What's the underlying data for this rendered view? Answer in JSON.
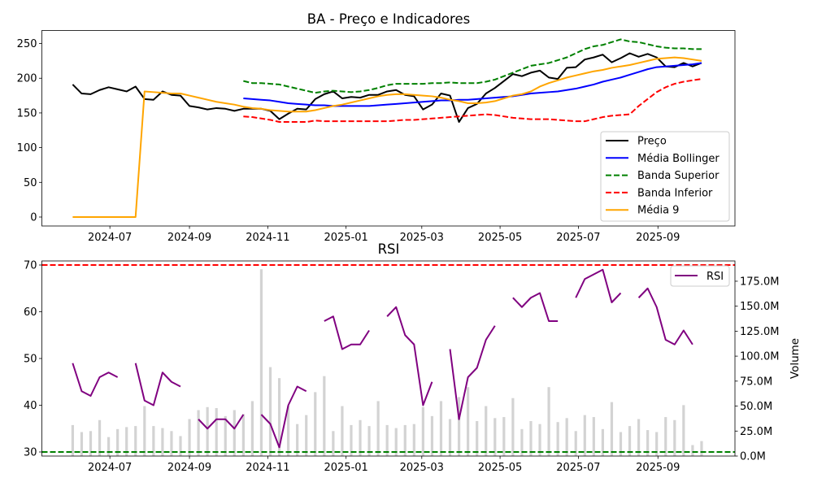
{
  "chart_data": [
    {
      "type": "line",
      "title": "BA - Preço e Indicadores",
      "xlim": [
        "2024-05-09",
        "2025-10-31"
      ],
      "ylim": [
        -12.9,
        268.8
      ],
      "yticks": [
        0,
        50,
        100,
        150,
        200,
        250
      ],
      "grid": false,
      "legend_placement": "lower-right",
      "x": [
        "2024-06-02",
        "2024-06-09",
        "2024-06-16",
        "2024-06-23",
        "2024-06-30",
        "2024-07-07",
        "2024-07-14",
        "2024-07-21",
        "2024-07-28",
        "2024-08-04",
        "2024-08-11",
        "2024-08-18",
        "2024-08-25",
        "2024-09-01",
        "2024-09-08",
        "2024-09-15",
        "2024-09-22",
        "2024-09-29",
        "2024-10-06",
        "2024-10-13",
        "2024-10-20",
        "2024-10-27",
        "2024-11-03",
        "2024-11-10",
        "2024-11-17",
        "2024-11-24",
        "2024-12-01",
        "2024-12-08",
        "2024-12-15",
        "2024-12-22",
        "2024-12-29",
        "2025-01-05",
        "2025-01-12",
        "2025-01-19",
        "2025-01-26",
        "2025-02-02",
        "2025-02-09",
        "2025-02-16",
        "2025-02-23",
        "2025-03-02",
        "2025-03-09",
        "2025-03-16",
        "2025-03-23",
        "2025-03-30",
        "2025-04-06",
        "2025-04-13",
        "2025-04-20",
        "2025-04-27",
        "2025-05-04",
        "2025-05-11",
        "2025-05-18",
        "2025-05-25",
        "2025-06-01",
        "2025-06-08",
        "2025-06-15",
        "2025-06-22",
        "2025-06-29",
        "2025-07-06",
        "2025-07-13",
        "2025-07-20",
        "2025-07-27",
        "2025-08-03",
        "2025-08-10",
        "2025-08-17",
        "2025-08-24",
        "2025-08-31",
        "2025-09-07",
        "2025-09-14",
        "2025-09-21",
        "2025-09-28",
        "2025-10-05"
      ],
      "series": [
        {
          "name": "Preço",
          "color": "#000000",
          "dashed": false,
          "values": [
            191,
            178,
            177,
            183,
            187,
            184,
            181,
            188,
            170,
            169,
            181,
            176,
            175,
            160,
            158,
            155,
            157,
            156,
            153,
            156,
            156,
            156,
            153,
            141,
            149,
            156,
            155,
            170,
            177,
            181,
            171,
            173,
            172,
            176,
            176,
            181,
            183,
            176,
            174,
            155,
            162,
            178,
            175,
            137,
            157,
            163,
            178,
            186,
            196,
            206,
            203,
            208,
            211,
            201,
            199,
            215,
            216,
            227,
            230,
            234,
            223,
            229,
            236,
            231,
            235,
            230,
            217,
            216,
            222,
            217,
            222
          ]
        },
        {
          "name": "Média Bollinger",
          "color": "#0000ff",
          "dashed": false,
          "values": [
            null,
            null,
            null,
            null,
            null,
            null,
            null,
            null,
            null,
            null,
            null,
            null,
            null,
            null,
            null,
            null,
            null,
            null,
            null,
            171,
            170,
            169,
            168,
            166,
            164,
            163,
            162,
            161,
            161,
            160,
            160,
            160,
            160,
            160,
            161,
            162,
            163,
            164,
            165,
            166,
            167,
            168,
            168,
            169,
            169,
            170,
            171,
            172,
            173,
            174,
            176,
            178,
            179,
            180,
            181,
            183,
            185,
            188,
            191,
            195,
            198,
            201,
            205,
            209,
            213,
            216,
            217,
            218,
            219,
            220,
            222
          ]
        },
        {
          "name": "Banda Superior",
          "color": "#008000",
          "dashed": true,
          "values": [
            null,
            null,
            null,
            null,
            null,
            null,
            null,
            null,
            null,
            null,
            null,
            null,
            null,
            null,
            null,
            null,
            null,
            null,
            null,
            196,
            193,
            193,
            192,
            191,
            188,
            185,
            182,
            179,
            181,
            182,
            181,
            180,
            181,
            183,
            186,
            190,
            192,
            192,
            192,
            192,
            193,
            193,
            194,
            193,
            193,
            193,
            195,
            198,
            203,
            208,
            213,
            218,
            220,
            222,
            226,
            230,
            236,
            242,
            246,
            248,
            252,
            256,
            253,
            252,
            249,
            246,
            244,
            243,
            243,
            242,
            242
          ]
        },
        {
          "name": "Banda Inferior",
          "color": "#ff0000",
          "dashed": true,
          "values": [
            null,
            null,
            null,
            null,
            null,
            null,
            null,
            null,
            null,
            null,
            null,
            null,
            null,
            null,
            null,
            null,
            null,
            null,
            null,
            145,
            144,
            142,
            140,
            137,
            137,
            137,
            137,
            139,
            138,
            138,
            138,
            138,
            138,
            138,
            138,
            138,
            139,
            140,
            140,
            141,
            142,
            143,
            144,
            145,
            146,
            147,
            148,
            147,
            145,
            143,
            142,
            141,
            141,
            141,
            140,
            139,
            138,
            138,
            141,
            144,
            146,
            147,
            148,
            160,
            170,
            180,
            187,
            192,
            195,
            197,
            199
          ]
        },
        {
          "name": "Média 9",
          "color": "#ffa500",
          "dashed": false,
          "values": [
            0,
            0,
            0,
            0,
            0,
            0,
            0,
            0,
            181,
            180,
            179,
            178,
            178,
            175,
            172,
            169,
            166,
            164,
            162,
            159,
            157,
            156,
            154,
            153,
            152,
            152,
            152,
            154,
            157,
            160,
            162,
            165,
            168,
            171,
            174,
            176,
            177,
            177,
            176,
            175,
            174,
            172,
            169,
            167,
            164,
            164,
            165,
            167,
            171,
            175,
            177,
            181,
            188,
            193,
            197,
            201,
            204,
            207,
            210,
            212,
            215,
            217,
            219,
            222,
            225,
            228,
            229,
            230,
            229,
            227,
            225
          ]
        }
      ]
    },
    {
      "type": "line",
      "title": "RSI",
      "xlim": [
        "2024-05-09",
        "2025-10-31"
      ],
      "ylim": [
        29.13,
        70.87
      ],
      "yticks": [
        30,
        40,
        50,
        60,
        70
      ],
      "xticks": [
        "2024-07",
        "2024-09",
        "2024-11",
        "2025-01",
        "2025-03",
        "2025-05",
        "2025-07",
        "2025-09"
      ],
      "legend_placement": "upper-right",
      "reference_lines": [
        {
          "value": 70,
          "color": "#ff0000"
        },
        {
          "value": 30,
          "color": "#008000"
        }
      ],
      "series": [
        {
          "name": "RSI",
          "color": "#800080",
          "values": [
            49,
            43,
            42,
            46,
            47,
            46,
            null,
            49,
            41,
            40,
            47,
            45,
            44,
            null,
            37,
            35,
            37,
            37,
            35,
            38,
            null,
            38,
            36,
            31,
            40,
            44,
            43,
            null,
            58,
            59,
            52,
            53,
            53,
            56,
            null,
            59,
            61,
            55,
            53,
            40,
            45,
            null,
            52,
            37,
            46,
            48,
            54,
            57,
            null,
            63,
            61,
            63,
            64,
            58,
            58,
            null,
            63,
            67,
            68,
            69,
            62,
            64,
            null,
            63,
            65,
            61,
            54,
            53,
            56,
            53,
            null
          ]
        }
      ],
      "secondary_axis": {
        "type": "bar",
        "ylabel": "Volume",
        "unit": "M",
        "ylim": [
          0,
          195.3
        ],
        "yticks": [
          0,
          25,
          50,
          75,
          100,
          125,
          150,
          175
        ],
        "ytick_labels": [
          "0.0M",
          "25.0M",
          "50.0M",
          "75.0M",
          "100.0M",
          "125.0M",
          "150.0M",
          "175.0M"
        ],
        "color": "#d3d3d3",
        "values": [
          31,
          24,
          25,
          36,
          19,
          27,
          29,
          30,
          50,
          30,
          28,
          25,
          20,
          37,
          46,
          49,
          48,
          40,
          46,
          42,
          55,
          187,
          89,
          78,
          50,
          32,
          41,
          64,
          80,
          25,
          50,
          31,
          36,
          30,
          55,
          31,
          28,
          31,
          32,
          49,
          40,
          55,
          37,
          59,
          69,
          35,
          50,
          38,
          39,
          58,
          27,
          35,
          32,
          69,
          34,
          38,
          25,
          41,
          39,
          27,
          54,
          24,
          30,
          37,
          26,
          24,
          39,
          36,
          51,
          11,
          15
        ]
      }
    }
  ]
}
